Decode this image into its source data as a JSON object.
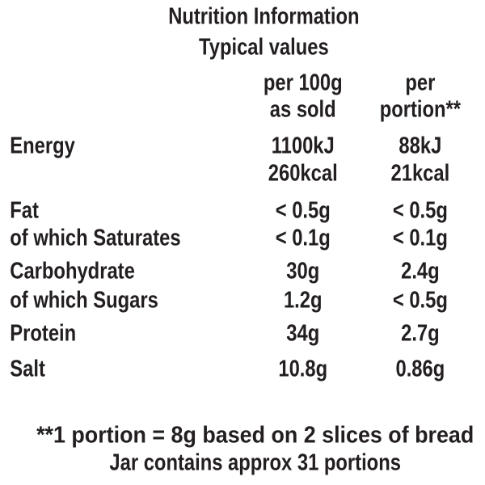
{
  "header": {
    "title": "Nutrition Information",
    "subtitle": "Typical values"
  },
  "table": {
    "columns": [
      [
        "per 100g",
        "as sold"
      ],
      [
        "per",
        "portion**"
      ]
    ],
    "rows": [
      {
        "label": "Energy",
        "per_100g": [
          "1100kJ",
          "260kcal"
        ],
        "per_portion": [
          "88kJ",
          "21kcal"
        ]
      },
      {
        "label": "Fat",
        "per_100g": "< 0.5g",
        "per_portion": "< 0.5g"
      },
      {
        "label": "of which Saturates",
        "per_100g": "< 0.1g",
        "per_portion": "< 0.1g"
      },
      {
        "label": "Carbohydrate",
        "per_100g": "30g",
        "per_portion": "2.4g"
      },
      {
        "label": "of which Sugars",
        "per_100g": "1.2g",
        "per_portion": "< 0.5g"
      },
      {
        "label": "Protein",
        "per_100g": "34g",
        "per_portion": "2.7g"
      },
      {
        "label": "Salt",
        "per_100g": "10.8g",
        "per_portion": "0.86g"
      }
    ]
  },
  "footer": [
    "**1 portion = 8g based on 2 slices of bread",
    "Jar contains approx 31 portions"
  ]
}
